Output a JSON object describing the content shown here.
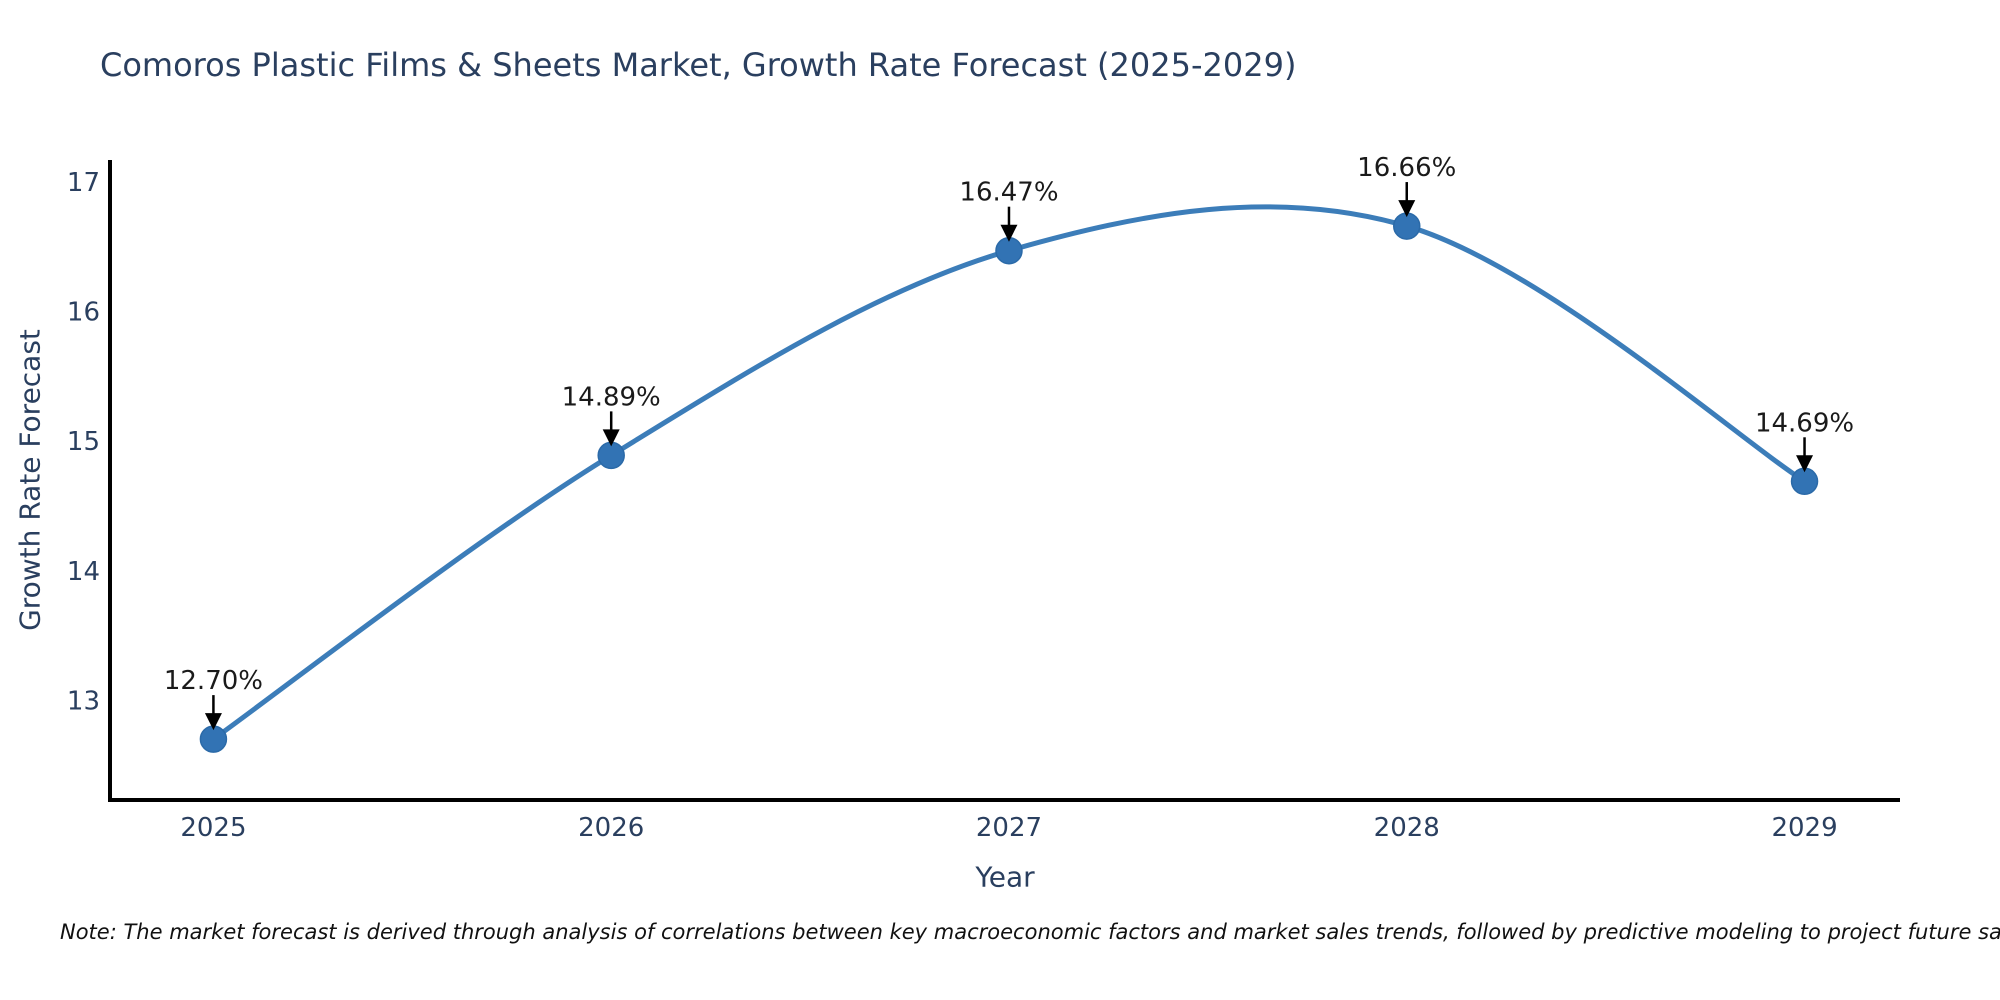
{
  "chart_data": {
    "type": "line",
    "title": "Comoros Plastic Films & Sheets Market, Growth Rate Forecast (2025-2029)",
    "xlabel": "Year",
    "ylabel": "Growth Rate Forecast",
    "x": [
      2025,
      2026,
      2027,
      2028,
      2029
    ],
    "values": [
      12.7,
      14.89,
      16.47,
      16.66,
      14.69
    ],
    "point_labels": [
      "12.70%",
      "14.89%",
      "16.47%",
      "16.66%",
      "14.69%"
    ],
    "xticks": [
      "2025",
      "2026",
      "2027",
      "2028",
      "2029"
    ],
    "yticks": [
      13,
      14,
      15,
      16,
      17
    ],
    "xlim": [
      2024.74,
      2029.24
    ],
    "ylim": [
      12.23,
      17.17
    ],
    "line_shape": "spline",
    "grid": false,
    "legend": "none",
    "annotations_have_arrows": true,
    "note": "Note: The market forecast is derived through analysis of correlations between key macroeconomic factors and market sales trends, followed by predictive modeling to project future sales",
    "colors": {
      "line": "#3c7db9",
      "marker_fill": "#3273b4",
      "marker_stroke": "#2b6aa8",
      "arrow": "#000000",
      "axis": "#000000",
      "tick_label": "#2a3f5f",
      "title": "#2a3f5f",
      "annotation_text": "#1a1a1a",
      "note_text": "#111111",
      "background": "#ffffff"
    }
  }
}
